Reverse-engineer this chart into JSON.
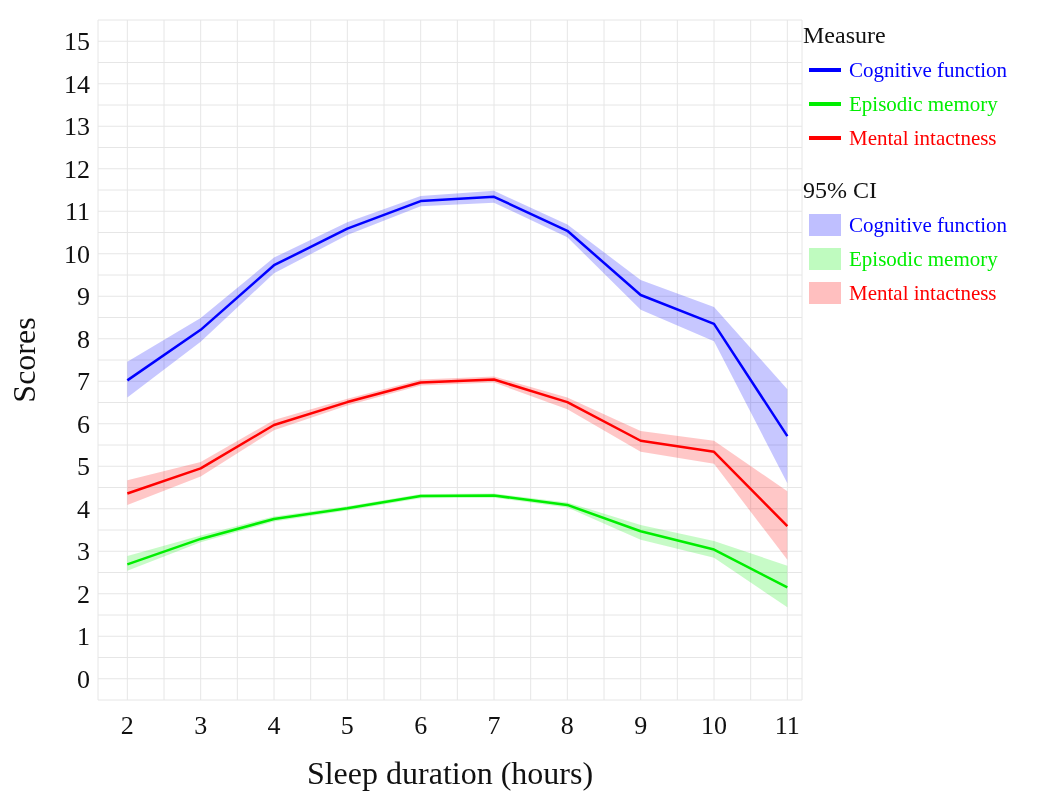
{
  "chart_data": {
    "type": "line",
    "xlabel": "Sleep duration (hours)",
    "ylabel": "Scores",
    "legend_title": "Measure",
    "annotations": [
      "95% CI"
    ],
    "x": [
      2,
      3,
      4,
      5,
      6,
      7,
      8,
      9,
      10,
      11
    ],
    "series": [
      {
        "name": "Cognitive function",
        "color": "#0000ff",
        "values": [
          7.02,
          8.21,
          9.73,
          10.59,
          11.24,
          11.34,
          10.54,
          9.03,
          8.35,
          5.71
        ],
        "lower": [
          6.62,
          7.93,
          9.54,
          10.44,
          11.12,
          11.2,
          10.39,
          8.68,
          7.94,
          4.6
        ],
        "upper": [
          7.46,
          8.49,
          9.91,
          10.74,
          11.36,
          11.48,
          10.69,
          9.38,
          8.75,
          6.81
        ]
      },
      {
        "name": "Episodic memory",
        "color": "#00ee00",
        "values": [
          2.69,
          3.29,
          3.76,
          4.01,
          4.3,
          4.31,
          4.09,
          3.47,
          3.04,
          2.15
        ],
        "lower": [
          2.54,
          3.21,
          3.7,
          3.96,
          4.25,
          4.26,
          4.03,
          3.27,
          2.85,
          1.68
        ],
        "upper": [
          2.89,
          3.37,
          3.82,
          4.06,
          4.35,
          4.36,
          4.15,
          3.62,
          3.24,
          2.66
        ]
      },
      {
        "name": "Mental intactness",
        "color": "#ff0000",
        "values": [
          4.36,
          4.95,
          5.97,
          6.51,
          6.97,
          7.04,
          6.51,
          5.6,
          5.34,
          3.59
        ],
        "lower": [
          4.09,
          4.76,
          5.85,
          6.43,
          6.9,
          6.97,
          6.34,
          5.34,
          5.06,
          2.8
        ],
        "upper": [
          4.67,
          5.1,
          6.09,
          6.59,
          7.04,
          7.11,
          6.62,
          5.83,
          5.6,
          4.41
        ]
      }
    ],
    "xlim": [
      1.6,
      11.2
    ],
    "xticks": [
      2,
      {
        "value": 2.5,
        "label": null
      },
      3,
      {
        "value": 3.5,
        "label": null
      },
      4,
      {
        "value": 4.5,
        "label": null
      },
      5,
      {
        "value": 5.5,
        "label": null
      },
      6,
      {
        "value": 6.5,
        "label": null
      },
      7,
      {
        "value": 7.5,
        "label": null
      },
      8,
      {
        "value": 8.5,
        "label": null
      },
      9,
      {
        "value": 9.5,
        "label": null
      },
      10,
      {
        "value": 10.5,
        "label": null
      },
      11
    ],
    "ylim": [
      -0.5,
      15.5
    ],
    "yticks": [
      {
        "value": -0.5,
        "label": null
      },
      0,
      {
        "value": 0.5,
        "label": null
      },
      1,
      {
        "value": 1.5,
        "label": null
      },
      2,
      {
        "value": 2.5,
        "label": null
      },
      3,
      {
        "value": 3.5,
        "label": null
      },
      4,
      {
        "value": 4.5,
        "label": null
      },
      5,
      {
        "value": 5.5,
        "label": null
      },
      6,
      {
        "value": 6.5,
        "label": null
      },
      7,
      {
        "value": 7.5,
        "label": null
      },
      8,
      {
        "value": 8.5,
        "label": null
      },
      9,
      {
        "value": 9.5,
        "label": null
      },
      10,
      {
        "value": 10.5,
        "label": null
      },
      11,
      {
        "value": 11.5,
        "label": null
      },
      12,
      {
        "value": 12.5,
        "label": null
      },
      13,
      {
        "value": 13.5,
        "label": null
      },
      14,
      {
        "value": 14.5,
        "label": null
      },
      15,
      {
        "value": 15.5,
        "label": null
      }
    ],
    "grid": true,
    "legend": "top right",
    "marker": "none",
    "line_style": "solid"
  }
}
